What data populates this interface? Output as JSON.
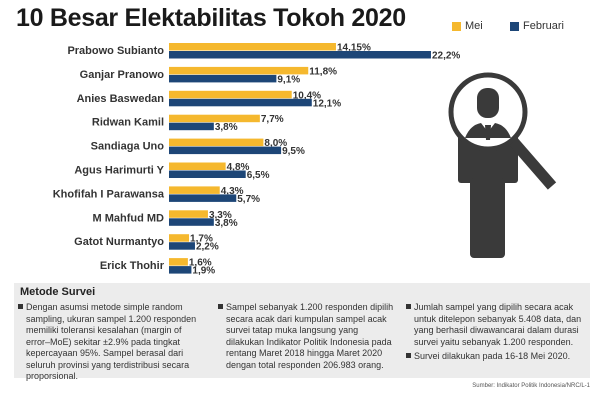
{
  "chart_data": {
    "type": "bar",
    "orientation": "horizontal",
    "title": "10 Besar Elektabilitas Tokoh 2020",
    "categories": [
      "Prabowo Subianto",
      "Ganjar Pranowo",
      "Anies Baswedan",
      "Ridwan Kamil",
      "Sandiaga Uno",
      "Agus Harimurti Y",
      "Khofifah I Parawansa",
      "M Mahfud MD",
      "Gatot Nurmantyo",
      "Erick Thohir"
    ],
    "series": [
      {
        "name": "Mei",
        "color": "#f5b82e",
        "values": [
          14.15,
          11.8,
          10.4,
          7.7,
          8.0,
          4.8,
          4.3,
          3.3,
          1.7,
          1.6
        ],
        "labels": [
          "14,15%",
          "11,8%",
          "10,4%",
          "7,7%",
          "8,0%",
          "4,8%",
          "4,3%",
          "3,3%",
          "1,7%",
          "1,6%"
        ]
      },
      {
        "name": "Februari",
        "color": "#1d4677",
        "values": [
          22.2,
          9.1,
          12.1,
          3.8,
          9.5,
          6.5,
          5.7,
          3.8,
          2.2,
          1.9
        ],
        "labels": [
          "22,2%",
          "9,1%",
          "12,1%",
          "3,8%",
          "9,5%",
          "6,5%",
          "5,7%",
          "3,8%",
          "2,2%",
          "1,9%"
        ]
      }
    ],
    "legend_position": "top-right",
    "grid": false,
    "unit": "%"
  },
  "method": {
    "title": "Metode Survei",
    "col1": [
      "Dengan asumsi metode simple random sampling, ukuran sampel 1.200 responden memiliki toleransi kesalahan (margin of error–MoE) sekitar ±2.9% pada tingkat kepercayaan 95%. Sampel berasal dari seluruh provinsi yang terdistribusi secara proporsional."
    ],
    "col2": [
      "Sampel sebanyak 1.200 responden dipilih secara acak dari kumpulan sampel acak survei tatap muka langsung yang dilakukan Indikator Politik Indonesia pada rentang Maret 2018 hingga Maret 2020 dengan total responden 206.983 orang."
    ],
    "col3": [
      "Jumlah sampel yang dipilih secara acak untuk ditelepon sebanyak 5.408 data, dan yang berhasil diwawancarai dalam durasi survei yaitu sebanyak 1.200 responden.",
      "Survei dilakukan pada 16-18 Mei 2020."
    ]
  },
  "source": "Sumber: Indikator Politik Indonesia/NRC/L-1",
  "icon": "person-magnifier-icon",
  "icon_color": "#3a3a3a"
}
